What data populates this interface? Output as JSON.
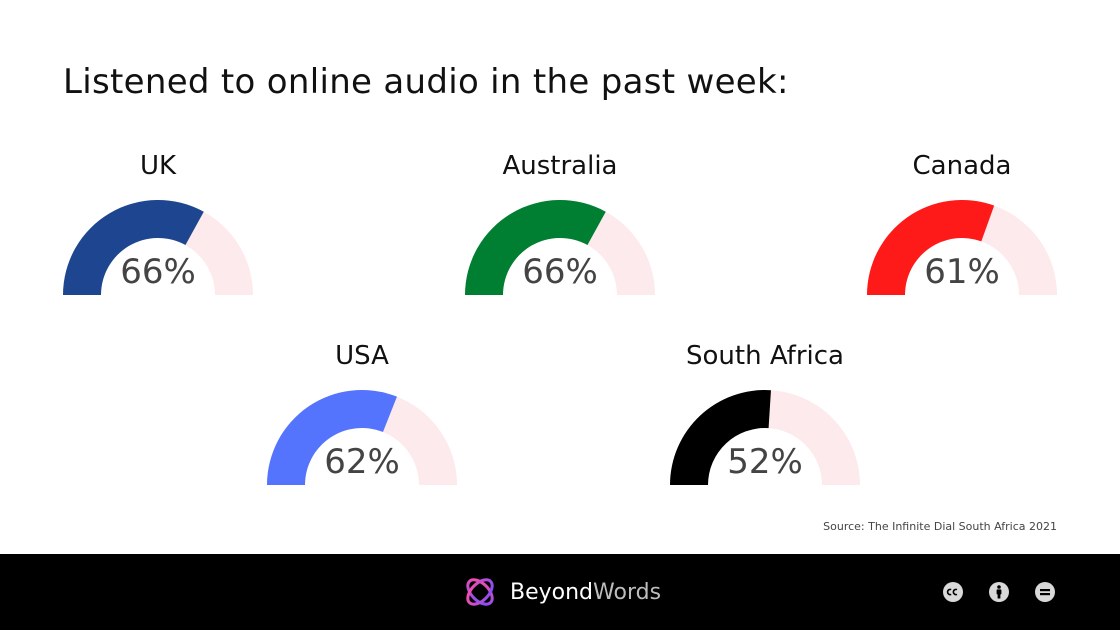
{
  "title": "Listened to online audio in the past week:",
  "source": "Source: The Infinite Dial South Africa 2021",
  "brand": {
    "part1": "Beyond",
    "part2": "Words"
  },
  "icons": [
    "creative-commons-cc-icon",
    "attribution-icon",
    "no-derivatives-icon"
  ],
  "chart_data": {
    "type": "gauge",
    "title": "Listened to online audio in the past week:",
    "max": 100,
    "unit": "%",
    "track_color": "#fdeaec",
    "gauges": [
      {
        "name": "UK",
        "value": 66,
        "label": "66%",
        "color": "#1e4690"
      },
      {
        "name": "Australia",
        "value": 66,
        "label": "66%",
        "color": "#007f32"
      },
      {
        "name": "Canada",
        "value": 61,
        "label": "61%",
        "color": "#ff1a1a"
      },
      {
        "name": "USA",
        "value": 62,
        "label": "62%",
        "color": "#5574fd"
      },
      {
        "name": "South Africa",
        "value": 52,
        "label": "52%",
        "color": "#000000"
      }
    ]
  }
}
